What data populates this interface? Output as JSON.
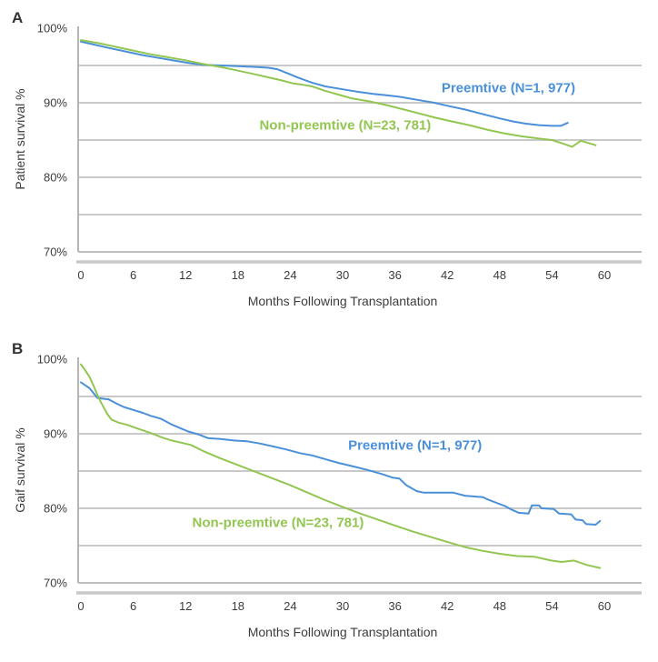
{
  "accent_colors": {
    "preemptive_blue": "#4a90d9",
    "non_preemptive_green": "#92c651",
    "gridline_gray": "#c9c9c9",
    "axis_gray": "#a8a8a8",
    "text_gray": "#3d3d3d"
  },
  "chart_data": [
    {
      "type": "line",
      "panel_label": "A",
      "ylabel": "Patient survival %",
      "xlabel": "Months Following Transplantation",
      "xlim": [
        0,
        60
      ],
      "ylim": [
        70,
        100
      ],
      "grid": true,
      "legend_position": "inline-labels",
      "xticks": [
        0,
        6,
        12,
        18,
        24,
        30,
        36,
        42,
        48,
        54,
        60
      ],
      "ytick_values": [
        100,
        90,
        80,
        70
      ],
      "ytick_labels": [
        "100%",
        "90%",
        "80%",
        "70%"
      ],
      "gridline_values": [
        95,
        90,
        85,
        80,
        75
      ],
      "series": [
        {
          "name": "Preemtive (N=1, 977)",
          "color": "#4a90d9",
          "label_anchor": {
            "month": 49.0,
            "percent": 92.0
          },
          "points": [
            [
              0,
              98.2
            ],
            [
              1.5,
              97.8
            ],
            [
              3,
              97.4
            ],
            [
              5,
              96.9
            ],
            [
              7,
              96.4
            ],
            [
              9,
              96.0
            ],
            [
              11,
              95.6
            ],
            [
              12.5,
              95.3
            ],
            [
              14,
              95.1
            ],
            [
              16,
              95.0
            ],
            [
              18,
              94.9
            ],
            [
              20,
              94.8
            ],
            [
              21.5,
              94.7
            ],
            [
              22.5,
              94.5
            ],
            [
              24,
              93.8
            ],
            [
              24.8,
              93.4
            ],
            [
              26.5,
              92.7
            ],
            [
              28,
              92.2
            ],
            [
              30,
              91.8
            ],
            [
              31.6,
              91.5
            ],
            [
              33.5,
              91.2
            ],
            [
              35,
              91.0
            ],
            [
              36.5,
              90.8
            ],
            [
              38.5,
              90.4
            ],
            [
              40.5,
              90.0
            ],
            [
              42,
              89.6
            ],
            [
              44,
              89.1
            ],
            [
              46,
              88.5
            ],
            [
              48,
              87.9
            ],
            [
              49.5,
              87.5
            ],
            [
              51,
              87.2
            ],
            [
              52.5,
              87.0
            ],
            [
              54,
              86.9
            ],
            [
              55,
              86.9
            ],
            [
              55.8,
              87.3
            ]
          ]
        },
        {
          "name": "Non-preemtive (N=23, 781)",
          "color": "#92c651",
          "label_anchor": {
            "month": 30.3,
            "percent": 87.0
          },
          "points": [
            [
              0,
              98.4
            ],
            [
              2,
              98.0
            ],
            [
              4,
              97.5
            ],
            [
              6,
              97.0
            ],
            [
              8,
              96.5
            ],
            [
              10,
              96.1
            ],
            [
              12,
              95.7
            ],
            [
              14,
              95.2
            ],
            [
              16,
              94.8
            ],
            [
              18,
              94.3
            ],
            [
              20,
              93.8
            ],
            [
              21.5,
              93.4
            ],
            [
              23,
              93.0
            ],
            [
              24.3,
              92.6
            ],
            [
              25.5,
              92.4
            ],
            [
              26.5,
              92.2
            ],
            [
              28,
              91.6
            ],
            [
              29.5,
              91.1
            ],
            [
              31,
              90.6
            ],
            [
              33,
              90.2
            ],
            [
              35,
              89.7
            ],
            [
              37,
              89.1
            ],
            [
              39,
              88.5
            ],
            [
              40.6,
              88.0
            ],
            [
              42.5,
              87.5
            ],
            [
              44.5,
              87.0
            ],
            [
              46.5,
              86.4
            ],
            [
              48.5,
              85.9
            ],
            [
              50.5,
              85.5
            ],
            [
              52.5,
              85.2
            ],
            [
              54,
              85.0
            ],
            [
              55.3,
              84.5
            ],
            [
              56.3,
              84.1
            ],
            [
              57.3,
              84.9
            ],
            [
              59,
              84.3
            ]
          ]
        }
      ]
    },
    {
      "type": "line",
      "panel_label": "B",
      "ylabel": "Gaif survival %",
      "xlabel": "Months Following Transplantation",
      "xlim": [
        0,
        60
      ],
      "ylim": [
        70,
        100
      ],
      "grid": true,
      "legend_position": "inline-labels",
      "xticks": [
        0,
        6,
        12,
        18,
        24,
        30,
        36,
        42,
        48,
        54,
        60
      ],
      "ytick_values": [
        100,
        90,
        80,
        70
      ],
      "ytick_labels": [
        "100%",
        "90%",
        "80%",
        "70%"
      ],
      "gridline_values": [
        95,
        90,
        85,
        80,
        75
      ],
      "series": [
        {
          "name": "Preemtive (N=1, 977)",
          "color": "#4a90d9",
          "label_anchor": {
            "month": 38.3,
            "percent": 88.5
          },
          "points": [
            [
              0,
              96.9
            ],
            [
              0.5,
              96.5
            ],
            [
              1,
              96.1
            ],
            [
              1.9,
              94.8
            ],
            [
              3.2,
              94.6
            ],
            [
              4,
              94.1
            ],
            [
              4.9,
              93.6
            ],
            [
              6,
              93.2
            ],
            [
              7.1,
              92.8
            ],
            [
              8,
              92.4
            ],
            [
              9.2,
              92.0
            ],
            [
              10.5,
              91.2
            ],
            [
              11.5,
              90.7
            ],
            [
              12.3,
              90.3
            ],
            [
              13.5,
              89.9
            ],
            [
              14.6,
              89.4
            ],
            [
              16,
              89.3
            ],
            [
              17.5,
              89.1
            ],
            [
              19,
              89.0
            ],
            [
              20.5,
              88.7
            ],
            [
              22,
              88.3
            ],
            [
              23.5,
              87.9
            ],
            [
              25.1,
              87.4
            ],
            [
              26.5,
              87.1
            ],
            [
              28,
              86.6
            ],
            [
              29.5,
              86.1
            ],
            [
              31.3,
              85.6
            ],
            [
              33,
              85.1
            ],
            [
              34.5,
              84.6
            ],
            [
              35.8,
              84.1
            ],
            [
              36.5,
              84.0
            ],
            [
              37.3,
              83.1
            ],
            [
              38.5,
              82.3
            ],
            [
              39.3,
              82.1
            ],
            [
              41,
              82.1
            ],
            [
              42.7,
              82.1
            ],
            [
              44,
              81.7
            ],
            [
              46.1,
              81.5
            ],
            [
              46.6,
              81.2
            ],
            [
              48.6,
              80.3
            ],
            [
              49.4,
              79.8
            ],
            [
              50.2,
              79.4
            ],
            [
              51.3,
              79.3
            ],
            [
              51.7,
              80.4
            ],
            [
              52.5,
              80.4
            ],
            [
              52.8,
              80.0
            ],
            [
              54.2,
              79.9
            ],
            [
              54.8,
              79.3
            ],
            [
              56.2,
              79.2
            ],
            [
              56.7,
              78.5
            ],
            [
              57.5,
              78.4
            ],
            [
              57.9,
              77.9
            ],
            [
              59,
              77.8
            ],
            [
              59.5,
              78.3
            ]
          ]
        },
        {
          "name": "Non-preemtive (N=23, 781)",
          "color": "#92c651",
          "label_anchor": {
            "month": 22.6,
            "percent": 78.1
          },
          "points": [
            [
              0,
              99.3
            ],
            [
              0.5,
              98.5
            ],
            [
              1,
              97.6
            ],
            [
              1.4,
              96.6
            ],
            [
              2,
              94.9
            ],
            [
              2.4,
              94.0
            ],
            [
              3,
              92.7
            ],
            [
              3.5,
              91.9
            ],
            [
              4.3,
              91.5
            ],
            [
              5.3,
              91.2
            ],
            [
              6.5,
              90.7
            ],
            [
              8,
              90.1
            ],
            [
              9.3,
              89.5
            ],
            [
              10.4,
              89.1
            ],
            [
              11.5,
              88.8
            ],
            [
              12.6,
              88.5
            ],
            [
              14,
              87.7
            ],
            [
              16,
              86.7
            ],
            [
              18,
              85.8
            ],
            [
              20,
              84.9
            ],
            [
              22,
              84.0
            ],
            [
              24,
              83.1
            ],
            [
              26,
              82.1
            ],
            [
              28,
              81.1
            ],
            [
              30,
              80.2
            ],
            [
              32,
              79.3
            ],
            [
              34,
              78.5
            ],
            [
              36,
              77.7
            ],
            [
              38,
              76.9
            ],
            [
              40,
              76.2
            ],
            [
              42,
              75.5
            ],
            [
              44,
              74.8
            ],
            [
              46,
              74.3
            ],
            [
              48,
              73.9
            ],
            [
              50,
              73.6
            ],
            [
              52,
              73.5
            ],
            [
              53.9,
              73.0
            ],
            [
              55.1,
              72.8
            ],
            [
              56.5,
              73.0
            ],
            [
              58,
              72.4
            ],
            [
              59.5,
              72.0
            ]
          ]
        }
      ]
    }
  ]
}
